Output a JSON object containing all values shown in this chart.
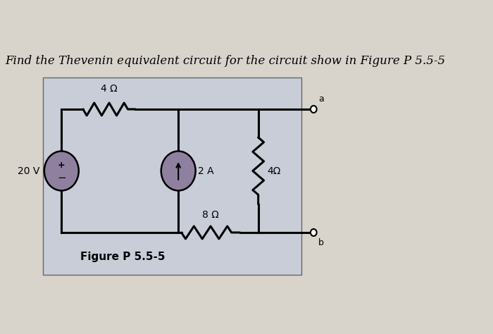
{
  "title": "Find the Thevenin equivalent circuit for the circuit show in Figure P 5.5-5",
  "figure_label": "Figure P 5.5-5",
  "bg_color": "#c8cdd8",
  "page_bg": "#d8d4cc",
  "title_fontsize": 12,
  "label_fontsize": 10,
  "small_fontsize": 9,
  "circuit": {
    "resistor_4ohm_top_label": "4 Ω",
    "resistor_8ohm_label": "8 Ω",
    "resistor_4ohm_right_label": "4Ω",
    "current_source_label": "2 A",
    "voltage_source_label": "20 V",
    "terminal_a": "a",
    "terminal_b": "b"
  }
}
